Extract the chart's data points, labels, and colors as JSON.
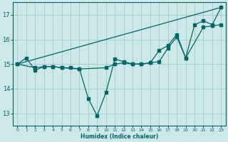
{
  "background_color": "#cce8e8",
  "grid_color": "#aacccc",
  "line_color": "#006666",
  "xlabel": "Humidex (Indice chaleur)",
  "xlim": [
    -0.5,
    23.5
  ],
  "ylim": [
    12.5,
    17.5
  ],
  "yticks": [
    13,
    14,
    15,
    16,
    17
  ],
  "xticks": [
    0,
    1,
    2,
    3,
    4,
    5,
    6,
    7,
    8,
    9,
    10,
    11,
    12,
    13,
    14,
    15,
    16,
    17,
    18,
    19,
    20,
    21,
    22,
    23
  ],
  "zigzag_x": [
    0,
    1,
    2,
    3,
    4,
    5,
    6,
    7,
    8,
    9,
    10,
    11,
    12,
    13,
    14,
    15,
    16,
    17,
    18,
    19,
    20,
    21,
    22,
    23
  ],
  "zigzag_y": [
    15.0,
    15.25,
    14.75,
    14.9,
    14.9,
    14.85,
    14.85,
    14.8,
    13.6,
    12.9,
    13.85,
    15.2,
    15.1,
    15.0,
    15.0,
    15.05,
    15.55,
    15.75,
    16.2,
    15.25,
    16.6,
    16.75,
    16.6,
    17.3
  ],
  "smooth_x": [
    0,
    2,
    3,
    4,
    5,
    7,
    10,
    11,
    12,
    13,
    14,
    15,
    16,
    17,
    18,
    19,
    21,
    22,
    23
  ],
  "smooth_y": [
    15.0,
    14.85,
    14.9,
    14.9,
    14.85,
    14.8,
    14.85,
    15.0,
    15.05,
    15.0,
    15.0,
    15.05,
    15.1,
    15.65,
    16.1,
    15.25,
    16.5,
    16.55,
    16.6
  ],
  "trend_x": [
    0,
    23
  ],
  "trend_y": [
    15.0,
    17.3
  ]
}
